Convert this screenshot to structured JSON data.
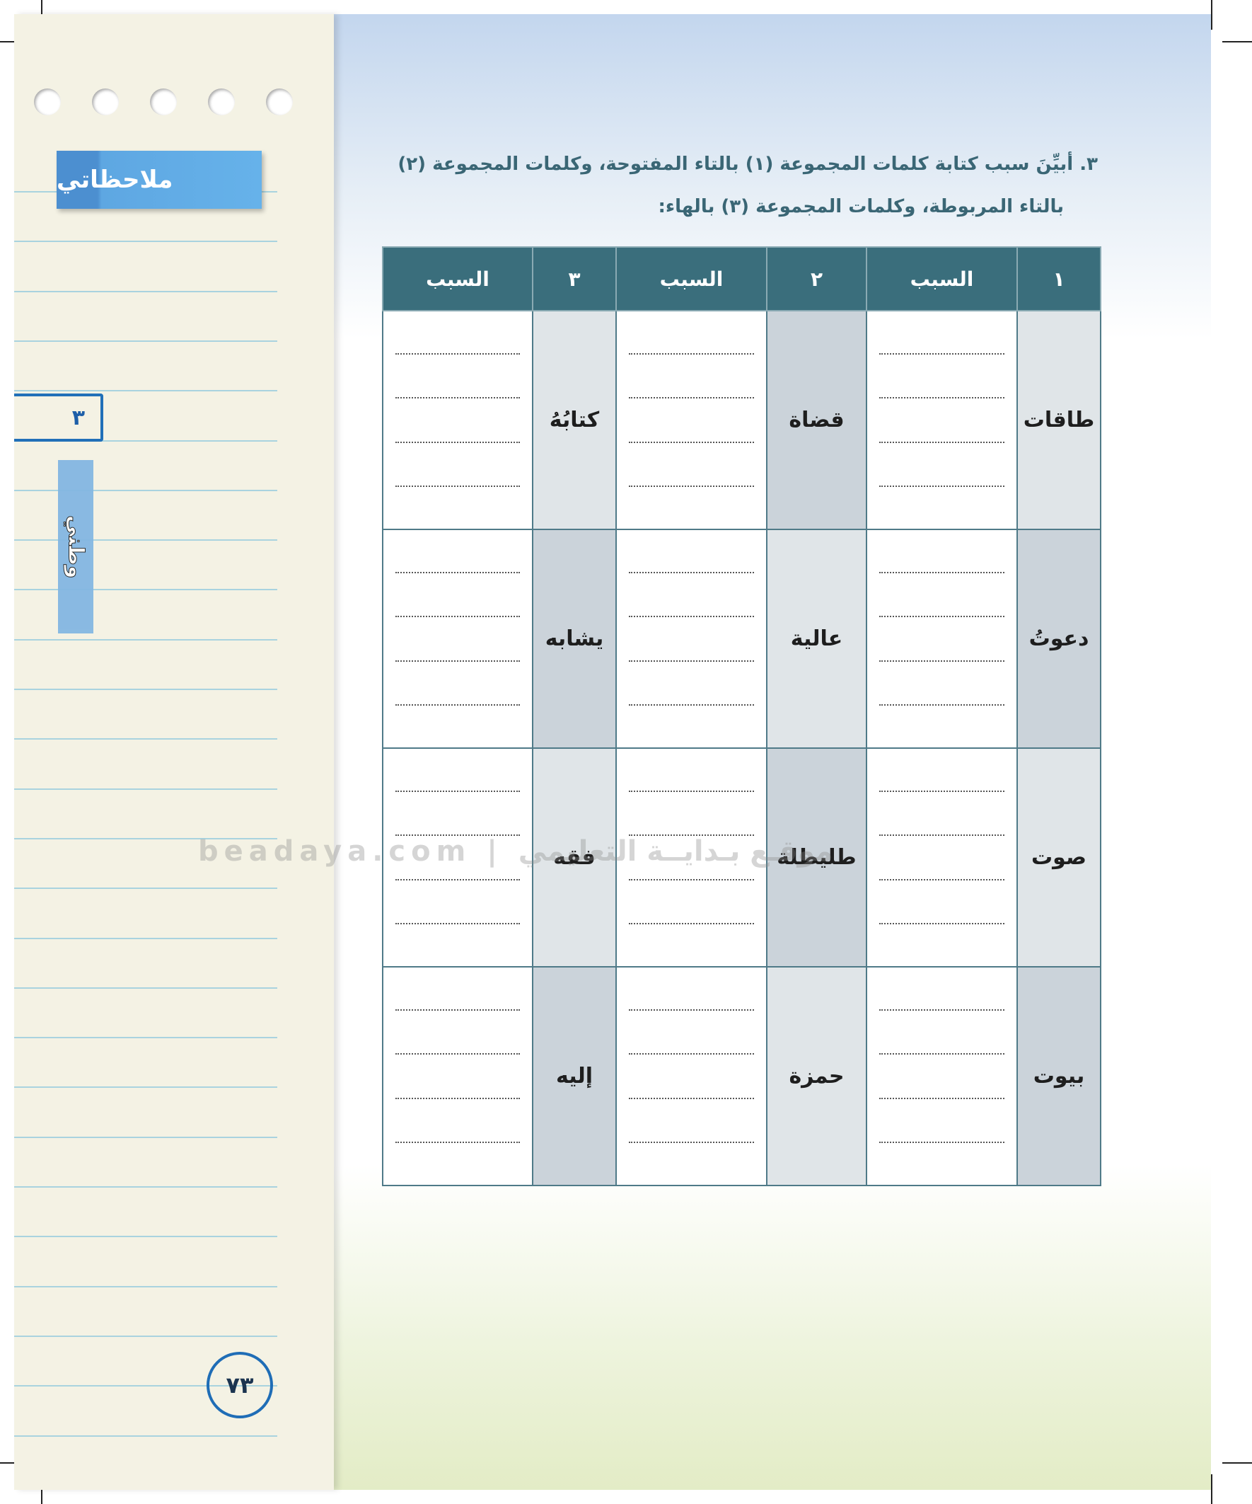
{
  "sidebar": {
    "notes_label": "ملاحظاتي",
    "unit_number": "٣",
    "unit_title": "وطني",
    "page_number": "٧٣"
  },
  "question": {
    "line1": "٣. أبيِّنَ سبب كتابة كلمات المجموعة (١) بالتاء المفتوحة، وكلمات المجموعة (٢)",
    "line2": "بالتاء المربوطة، وكلمات المجموعة (٣) بالهاء:"
  },
  "table": {
    "headers": [
      "١",
      "السبب",
      "٢",
      "السبب",
      "٣",
      "السبب"
    ],
    "rows": [
      {
        "g1": "طاقات",
        "g2": "قضاة",
        "g3": "كتابُهُ"
      },
      {
        "g1": "دعوتُ",
        "g2": "عالية",
        "g3": "يشابه"
      },
      {
        "g1": "صوت",
        "g2": "طليطلة",
        "g3": "فقه"
      },
      {
        "g1": "بيوت",
        "g2": "حمزة",
        "g3": "إليه"
      }
    ]
  },
  "watermark": "beadaya.com | موقـع بـدايــة التعليمي",
  "colors": {
    "header": "#3a6e7c",
    "accent_blue": "#2170b8",
    "question_text": "#3a6675"
  }
}
